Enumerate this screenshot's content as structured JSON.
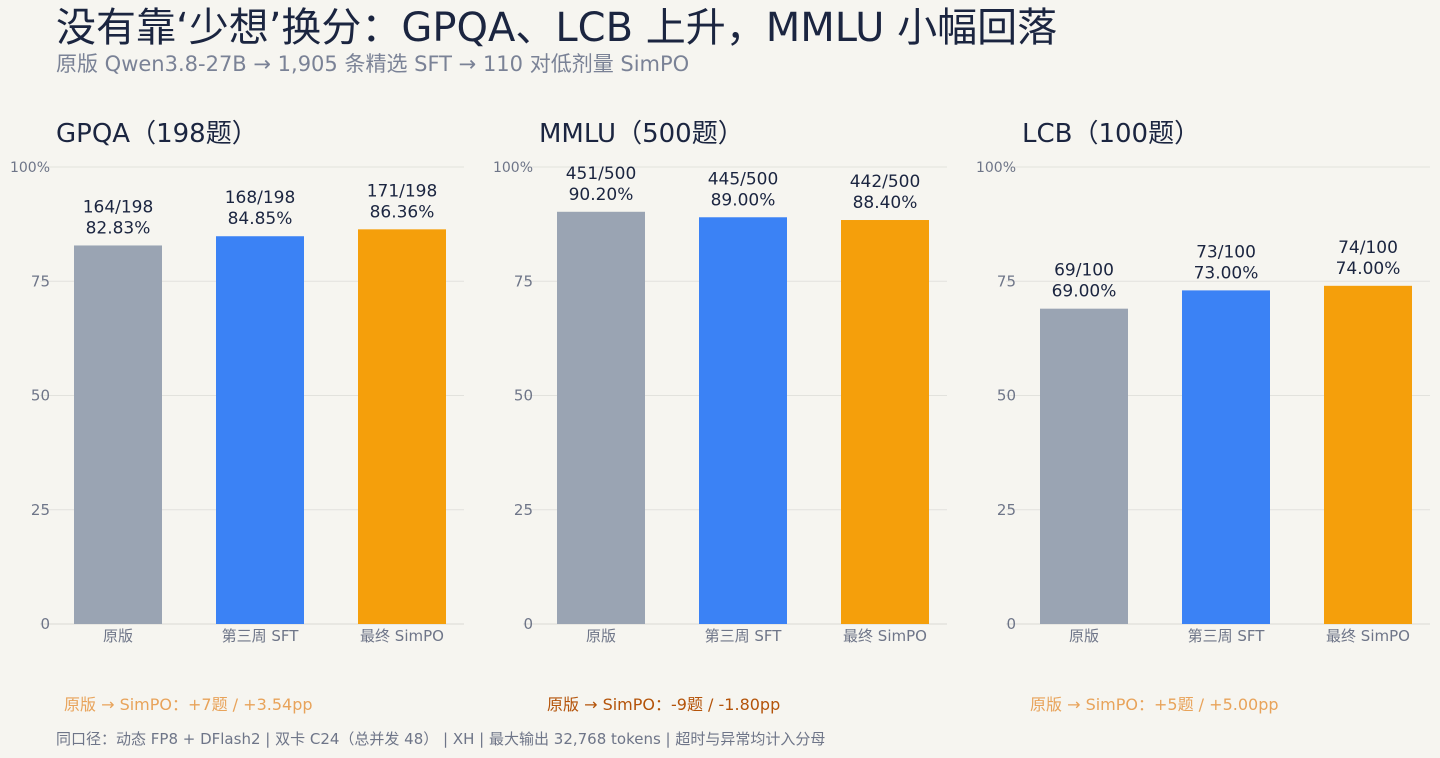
{
  "title": "没有靠‘少想’换分：GPQA、LCB 上升，MMLU 小幅回落",
  "subtitle": "原版 Qwen3.8-27B → 1,905 条精选 SFT → 110 对低剂量 SimPO",
  "footer": "同口径：动态 FP8 + DFlash2 | 双卡 C24（总并发 48） | XH | 最大输出 32,768 tokens | 超时与异常均计入分母",
  "colors": {
    "original": "#9aa4b3",
    "sft": "#3b82f5",
    "simpo": "#f59f0b",
    "delta_up": "#e8a35a",
    "delta_down": "#b45309"
  },
  "chart_data": [
    {
      "type": "bar",
      "title": "GPQA（198题）",
      "categories": [
        "原版",
        "第三周 SFT",
        "最终 SimPO"
      ],
      "values": [
        82.83,
        84.85,
        86.36
      ],
      "labels": [
        [
          "164/198",
          "82.83%"
        ],
        [
          "168/198",
          "84.85%"
        ],
        [
          "171/198",
          "86.36%"
        ]
      ],
      "ylim": [
        0,
        100
      ],
      "yticks": [
        "0",
        "25",
        "50",
        "75",
        "100%"
      ],
      "delta": "原版 → SimPO：+7题 / +3.54pp",
      "delta_direction": "up"
    },
    {
      "type": "bar",
      "title": "MMLU（500题）",
      "categories": [
        "原版",
        "第三周 SFT",
        "最终 SimPO"
      ],
      "values": [
        90.2,
        89.0,
        88.4
      ],
      "labels": [
        [
          "451/500",
          "90.20%"
        ],
        [
          "445/500",
          "89.00%"
        ],
        [
          "442/500",
          "88.40%"
        ]
      ],
      "ylim": [
        0,
        100
      ],
      "yticks": [
        "0",
        "25",
        "50",
        "75",
        "100%"
      ],
      "delta": "原版 → SimPO：-9题 / -1.80pp",
      "delta_direction": "down"
    },
    {
      "type": "bar",
      "title": "LCB（100题）",
      "categories": [
        "原版",
        "第三周 SFT",
        "最终 SimPO"
      ],
      "values": [
        69.0,
        73.0,
        74.0
      ],
      "labels": [
        [
          "69/100",
          "69.00%"
        ],
        [
          "73/100",
          "73.00%"
        ],
        [
          "74/100",
          "74.00%"
        ]
      ],
      "ylim": [
        0,
        100
      ],
      "yticks": [
        "0",
        "25",
        "50",
        "75",
        "100%"
      ],
      "delta": "原版 → SimPO：+5题 / +5.00pp",
      "delta_direction": "up"
    }
  ]
}
